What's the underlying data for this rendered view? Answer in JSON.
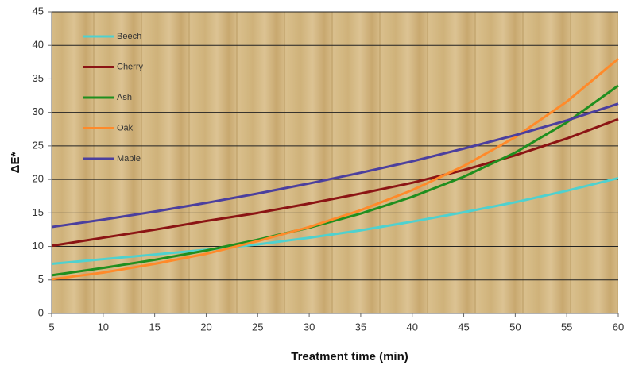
{
  "chart_data": {
    "type": "line",
    "x_label": "Treatment time (min)",
    "y_label": "ΔE*",
    "x": [
      5,
      10,
      15,
      20,
      25,
      30,
      35,
      40,
      45,
      50,
      55,
      60
    ],
    "xlim": [
      5,
      60
    ],
    "xticks": [
      5,
      10,
      15,
      20,
      25,
      30,
      35,
      40,
      45,
      50,
      55,
      60
    ],
    "ylim": [
      0,
      45
    ],
    "yticks": [
      0,
      5,
      10,
      15,
      20,
      25,
      30,
      35,
      40,
      45
    ],
    "grid": true,
    "legend": "upper left",
    "series": [
      {
        "name": "Beech",
        "color": "#4fd1cf",
        "values": [
          7.4,
          8.1,
          8.8,
          9.5,
          10.3,
          11.3,
          12.4,
          13.7,
          15.1,
          16.6,
          18.3,
          20.2
        ]
      },
      {
        "name": "Cherry",
        "color": "#8b1414",
        "values": [
          10.1,
          11.3,
          12.5,
          13.8,
          15.0,
          16.4,
          17.9,
          19.5,
          21.4,
          23.6,
          26.1,
          29.0
        ]
      },
      {
        "name": "Ash",
        "color": "#1f8f1f",
        "values": [
          5.7,
          6.8,
          8.0,
          9.4,
          11.0,
          12.8,
          14.9,
          17.4,
          20.4,
          24.0,
          28.5,
          34.0
        ]
      },
      {
        "name": "Oak",
        "color": "#ff8a2a",
        "values": [
          5.1,
          6.1,
          7.4,
          8.9,
          10.8,
          12.9,
          15.4,
          18.4,
          22.0,
          26.3,
          31.6,
          38.0
        ]
      },
      {
        "name": "Maple",
        "color": "#4b3f9e",
        "values": [
          12.9,
          14.0,
          15.2,
          16.5,
          17.9,
          19.4,
          21.0,
          22.7,
          24.6,
          26.6,
          28.8,
          31.3
        ]
      }
    ]
  }
}
